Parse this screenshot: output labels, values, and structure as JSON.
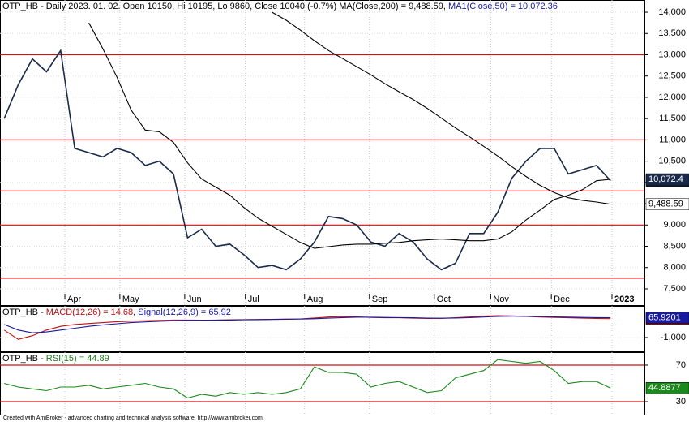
{
  "chart_data": [
    {
      "type": "line",
      "title_parts": [
        {
          "text": "OTP_HB - Daily 2023. 01. 02. Open 10150, Hi 10195, Lo 9860, Close 10040 (-0.7%) MA(Close,200) = 9,488.59, ",
          "color": "#000000"
        },
        {
          "text": "MA1(Close,50) = 10,072.36",
          "color": "#1a1a9a"
        }
      ],
      "xlim": [
        -0.3,
        45.4
      ],
      "xticks": [
        {
          "value": 4.3,
          "label": "Apr"
        },
        {
          "value": 8.2,
          "label": "May"
        },
        {
          "value": 12.8,
          "label": "Jun"
        },
        {
          "value": 17.1,
          "label": "Jul"
        },
        {
          "value": 21.3,
          "label": "Aug"
        },
        {
          "value": 25.9,
          "label": "Sep"
        },
        {
          "value": 30.5,
          "label": "Oct"
        },
        {
          "value": 34.5,
          "label": "Nov"
        },
        {
          "value": 38.8,
          "label": "Dec"
        },
        {
          "value": 43.1,
          "label": "2023"
        }
      ],
      "ylim": [
        7118,
        14287
      ],
      "yticks": [
        {
          "value": 7500,
          "label": "7,500"
        },
        {
          "value": 8000,
          "label": "8,000"
        },
        {
          "value": 8500,
          "label": "8,500"
        },
        {
          "value": 9000,
          "label": "9,000"
        },
        {
          "value": 9500,
          "label": "9,500"
        },
        {
          "value": 10000,
          "label": "10,000"
        },
        {
          "value": 10500,
          "label": "10,500"
        },
        {
          "value": 11000,
          "label": "11,000"
        },
        {
          "value": 11500,
          "label": "11,500"
        },
        {
          "value": 12000,
          "label": "12,000"
        },
        {
          "value": 12500,
          "label": "12,500"
        },
        {
          "value": 13000,
          "label": "13,000"
        },
        {
          "value": 13500,
          "label": "13,500"
        },
        {
          "value": 14000,
          "label": "14,000"
        }
      ],
      "hlines": {
        "color": "#d01010",
        "values": [
          13000,
          11000,
          9800,
          9000,
          7750
        ]
      },
      "series": [
        {
          "name": "Close",
          "color": "#1a2a4a",
          "box_color": "#1a2a4a",
          "box_text": "#ffffff",
          "values": [
            11500,
            12300,
            12900,
            12600,
            13100,
            10800,
            10700,
            10600,
            10800,
            10700,
            10400,
            10500,
            10200,
            8700,
            8900,
            8500,
            8550,
            8300,
            8000,
            8050,
            7950,
            8200,
            8600,
            9200,
            9150,
            9000,
            8600,
            8500,
            8800,
            8600,
            8200,
            7950,
            8100,
            8800,
            8800,
            9300,
            10100,
            10500,
            10800,
            10800,
            10200,
            10300,
            10400,
            10040
          ],
          "value_labels": [
            null,
            null,
            null,
            null,
            null,
            null,
            null,
            null,
            null,
            null,
            null,
            null,
            null,
            null,
            null,
            null,
            null,
            null,
            null,
            null,
            null,
            null,
            null,
            null,
            null,
            null,
            null,
            null,
            null,
            null,
            null,
            null,
            null,
            null,
            null,
            null,
            null,
            null,
            null,
            null,
            null,
            null,
            null,
            "10,040"
          ]
        },
        {
          "name": "MA1(Close,50)",
          "color": "#000000",
          "box_color": "#1a2a4a",
          "box_text": "#ffffff",
          "values": [
            null,
            null,
            null,
            null,
            null,
            null,
            13750,
            13140,
            12470,
            11700,
            11230,
            11190,
            10940,
            10460,
            10080,
            9890,
            9700,
            9410,
            9160,
            8970,
            8780,
            8590,
            8450,
            8490,
            8530,
            8550,
            8550,
            8570,
            8590,
            8630,
            8650,
            8670,
            8650,
            8630,
            8630,
            8670,
            8840,
            9120,
            9350,
            9600,
            9700,
            9830,
            10040,
            10072.36
          ],
          "value_labels": [
            null,
            null,
            null,
            null,
            null,
            null,
            null,
            null,
            null,
            null,
            null,
            null,
            null,
            null,
            null,
            null,
            null,
            null,
            null,
            null,
            null,
            null,
            null,
            null,
            null,
            null,
            null,
            null,
            null,
            null,
            null,
            null,
            null,
            null,
            null,
            null,
            null,
            null,
            null,
            null,
            null,
            null,
            null,
            "10,072.4"
          ]
        },
        {
          "name": "MA(Close,200)",
          "color": "#000000",
          "box_color": "#ffffff",
          "box_text": "#000000",
          "values": [
            null,
            null,
            null,
            null,
            null,
            null,
            null,
            null,
            null,
            null,
            null,
            null,
            null,
            null,
            null,
            null,
            null,
            null,
            null,
            14000,
            13810,
            13580,
            13330,
            13100,
            12910,
            12720,
            12530,
            12320,
            12130,
            11950,
            11740,
            11510,
            11280,
            11070,
            10850,
            10620,
            10370,
            10140,
            9930,
            9760,
            9640,
            9580,
            9540,
            9488.59
          ],
          "value_labels": [
            null,
            null,
            null,
            null,
            null,
            null,
            null,
            null,
            null,
            null,
            null,
            null,
            null,
            null,
            null,
            null,
            null,
            null,
            null,
            null,
            null,
            null,
            null,
            null,
            null,
            null,
            null,
            null,
            null,
            null,
            null,
            null,
            null,
            null,
            null,
            null,
            null,
            null,
            null,
            null,
            null,
            null,
            null,
            "9,488.59"
          ]
        }
      ]
    },
    {
      "type": "line",
      "title_parts": [
        {
          "text": "OTP_HB - ",
          "color": "#000000"
        },
        {
          "text": "MACD(12,26) = 14.68",
          "color": "#c01010"
        },
        {
          "text": ", ",
          "color": "#000000"
        },
        {
          "text": "Signal(12,26,9) = 65.92",
          "color": "#1a1aa0"
        }
      ],
      "xlim": [
        -0.3,
        45.4
      ],
      "ylim": [
        -1740,
        696
      ],
      "yticks": [
        {
          "value": -1000,
          "label": "-1,000"
        }
      ],
      "series": [
        {
          "name": "MACD",
          "color": "#c01010",
          "box_color": "#c01010",
          "box_text": "#ffffff",
          "values": [
            -600,
            -1100,
            -900,
            -600,
            -400,
            -300,
            -250,
            -200,
            -150,
            -120,
            -100,
            -80,
            -60,
            -60,
            -70,
            -60,
            -50,
            -40,
            -30,
            -20,
            -10,
            0,
            50,
            100,
            120,
            110,
            80,
            60,
            60,
            40,
            20,
            30,
            60,
            100,
            150,
            170,
            160,
            130,
            100,
            80,
            60,
            40,
            20,
            14.6753
          ],
          "value_labels": [
            null,
            null,
            null,
            null,
            null,
            null,
            null,
            null,
            null,
            null,
            null,
            null,
            null,
            null,
            null,
            null,
            null,
            null,
            null,
            null,
            null,
            null,
            null,
            null,
            null,
            null,
            null,
            null,
            null,
            null,
            null,
            null,
            null,
            null,
            null,
            null,
            null,
            null,
            null,
            null,
            null,
            null,
            null,
            "14.6753"
          ]
        },
        {
          "name": "Signal",
          "color": "#1a1aa0",
          "box_color": "#1a1aa0",
          "box_text": "#ffffff",
          "values": [
            -300,
            -600,
            -750,
            -700,
            -600,
            -500,
            -400,
            -320,
            -260,
            -200,
            -160,
            -130,
            -100,
            -80,
            -75,
            -70,
            -60,
            -50,
            -40,
            -30,
            -20,
            -10,
            10,
            40,
            70,
            90,
            90,
            80,
            70,
            60,
            45,
            35,
            45,
            65,
            100,
            130,
            145,
            140,
            125,
            110,
            95,
            80,
            70,
            65.9201
          ],
          "value_labels": [
            null,
            null,
            null,
            null,
            null,
            null,
            null,
            null,
            null,
            null,
            null,
            null,
            null,
            null,
            null,
            null,
            null,
            null,
            null,
            null,
            null,
            null,
            null,
            null,
            null,
            null,
            null,
            null,
            null,
            null,
            null,
            null,
            null,
            null,
            null,
            null,
            null,
            null,
            null,
            null,
            null,
            null,
            null,
            "65.9201"
          ]
        }
      ]
    },
    {
      "type": "line",
      "title_parts": [
        {
          "text": "OTP_HB - ",
          "color": "#000000"
        },
        {
          "text": "RSI(15) = 44.89",
          "color": "#1a7a1a"
        }
      ],
      "xlim": [
        -0.3,
        45.4
      ],
      "ylim": [
        15.8,
        84.2
      ],
      "yticks": [
        30,
        70
      ],
      "hlines": {
        "color": "#d01010",
        "values": [
          70,
          30
        ]
      },
      "series": [
        {
          "name": "RSI",
          "color": "#1a8a1a",
          "box_color": "#1a8a1a",
          "box_text": "#ffffff",
          "values": [
            50,
            46,
            44,
            42,
            46,
            46,
            48,
            44,
            46,
            48,
            50,
            46,
            44,
            34,
            38,
            36,
            40,
            38,
            40,
            38,
            40,
            44,
            68,
            62,
            62,
            60,
            46,
            50,
            52,
            46,
            40,
            42,
            56,
            60,
            64,
            76,
            74,
            72,
            74,
            64,
            50,
            52,
            52,
            44.8877
          ],
          "value_labels": [
            null,
            null,
            null,
            null,
            null,
            null,
            null,
            null,
            null,
            null,
            null,
            null,
            null,
            null,
            null,
            null,
            null,
            null,
            null,
            null,
            null,
            null,
            null,
            null,
            null,
            null,
            null,
            null,
            null,
            null,
            null,
            null,
            null,
            null,
            null,
            null,
            null,
            null,
            null,
            null,
            null,
            null,
            null,
            "44.8877"
          ]
        }
      ]
    }
  ],
  "footer": "Created with AmiBroker - advanced charting and technical analysis software. http://www.amibroker.com"
}
